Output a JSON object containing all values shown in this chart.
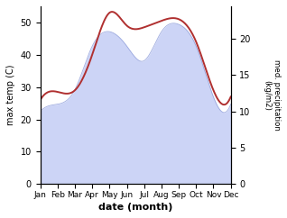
{
  "months": [
    "Jan",
    "Feb",
    "Mar",
    "Apr",
    "May",
    "Jun",
    "Jul",
    "Aug",
    "Sep",
    "Oct",
    "Nov",
    "Dec"
  ],
  "temp_max": [
    26,
    28.5,
    29,
    40,
    53,
    49,
    48.5,
    50.5,
    51,
    44,
    29,
    27
  ],
  "precip": [
    10,
    11,
    13,
    19,
    21,
    19,
    17,
    21,
    22,
    19,
    12,
    11
  ],
  "temp_color": "#b03030",
  "precip_fill_color": "#aab8f0",
  "precip_fill_alpha": 0.6,
  "precip_line_color": "#8898d8",
  "ylim_temp": [
    0,
    55
  ],
  "ylim_precip": [
    0,
    24.5
  ],
  "yticks_temp": [
    0,
    10,
    20,
    30,
    40,
    50
  ],
  "yticks_precip": [
    0,
    5,
    10,
    15,
    20
  ],
  "xlabel": "date (month)",
  "ylabel_left": "max temp (C)",
  "ylabel_right": "med. precipitation\n(kg/m2)",
  "bg_color": "#ffffff",
  "line_width": 1.4
}
